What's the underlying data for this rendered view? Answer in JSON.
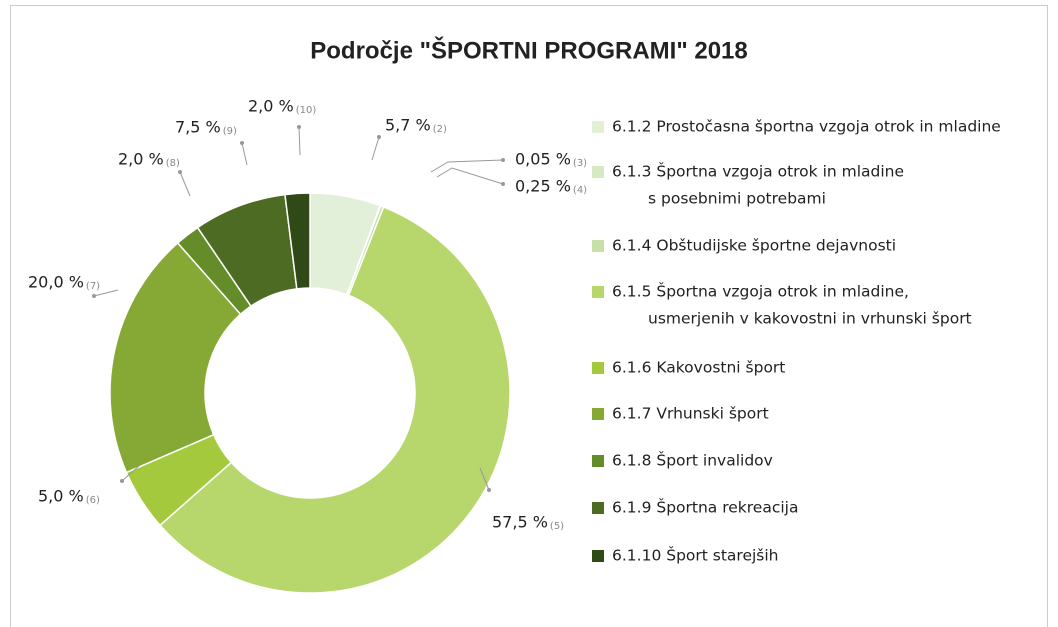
{
  "chart_data": {
    "type": "donut",
    "title": "Področje \"ŠPORTNI PROGRAMI\" 2018",
    "categories": [
      [
        "6.1.2 Prostočasna športna vzgoja otrok in mladine"
      ],
      [
        "6.1.3 Športna vzgoja otrok in mladine",
        "s posebnimi potrebami"
      ],
      [
        "6.1.4 Obštudijske športne dejavnosti"
      ],
      [
        "6.1.5 Športna vzgoja otrok in mladine,",
        "usmerjenih v kakovostni in vrhunski šport"
      ],
      [
        "6.1.6 Kakovostni šport"
      ],
      [
        "6.1.7 Vrhunski šport"
      ],
      [
        "6.1.8 Šport invalidov"
      ],
      [
        "6.1.9 Športna rekreacija"
      ],
      [
        "6.1.10 Šport starejših"
      ]
    ],
    "values": [
      5.7,
      0.05,
      0.25,
      57.5,
      5.0,
      20.0,
      2.0,
      7.5,
      2.0
    ],
    "value_labels": [
      "5,7 %",
      "0,05 %",
      "0,25 %",
      "57,5 %",
      "5,0 %",
      "20,0 %",
      "2,0 %",
      "7,5 %",
      "2,0 %"
    ],
    "index_labels": [
      "(2)",
      "(3)",
      "(4)",
      "(5)",
      "(6)",
      "(7)",
      "(8)",
      "(9)",
      "(10)"
    ],
    "colors": [
      "#e2efd9",
      "#d6e9c2",
      "#c8e0a6",
      "#b7d66c",
      "#a4c93c",
      "#86a834",
      "#648d2a",
      "#4d6b22",
      "#2f4a16"
    ],
    "legend": "right"
  }
}
